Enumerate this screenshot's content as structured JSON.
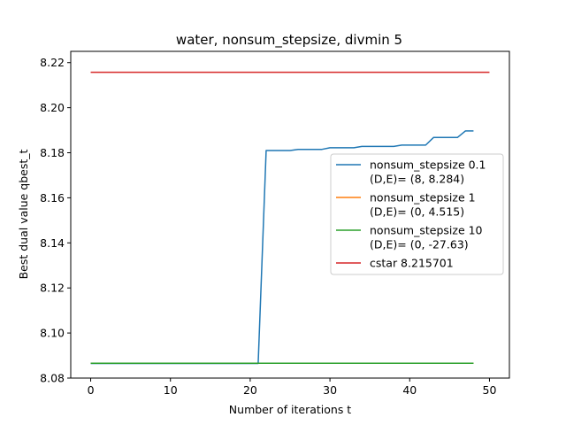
{
  "chart_data": {
    "type": "line",
    "title": "water, nonsum_stepsize, divmin 5",
    "xlabel": "Number of iterations t",
    "ylabel": "Best dual value qbest_t",
    "xlim": [
      -2.5,
      52.5
    ],
    "ylim": [
      8.08,
      8.225
    ],
    "xticks": [
      0,
      10,
      20,
      30,
      40,
      50
    ],
    "yticks": [
      8.08,
      8.1,
      8.12,
      8.14,
      8.16,
      8.18,
      8.2,
      8.22
    ],
    "ytick_labels": [
      "8.08",
      "8.10",
      "8.12",
      "8.14",
      "8.16",
      "8.18",
      "8.20",
      "8.22"
    ],
    "legend_position": "center-right",
    "grid": false,
    "series": [
      {
        "name": "nonsum_stepsize 0.1",
        "legend_line2": "(D,E)= (8, 8.284)",
        "color": "#1f77b4",
        "x": [
          0,
          21,
          22,
          25,
          26,
          29,
          30,
          33,
          34,
          38,
          39,
          42,
          43,
          46,
          47,
          48
        ],
        "y": [
          8.0865,
          8.0865,
          8.181,
          8.181,
          8.1815,
          8.1815,
          8.1822,
          8.1822,
          8.1828,
          8.1828,
          8.1834,
          8.1834,
          8.1868,
          8.1868,
          8.1897,
          8.1897
        ]
      },
      {
        "name": "nonsum_stepsize 1",
        "legend_line2": "(D,E)= (0, 4.515)",
        "color": "#ff7f0e",
        "x": [
          0,
          48
        ],
        "y": [
          8.0866,
          8.0866
        ]
      },
      {
        "name": "nonsum_stepsize 10",
        "legend_line2": "(D,E)= (0, -27.63)",
        "color": "#2ca02c",
        "x": [
          0,
          48
        ],
        "y": [
          8.0866,
          8.0866
        ]
      },
      {
        "name": "cstar 8.215701",
        "color": "#d62728",
        "x": [
          0,
          50
        ],
        "y": [
          8.2157,
          8.2157
        ]
      }
    ]
  }
}
